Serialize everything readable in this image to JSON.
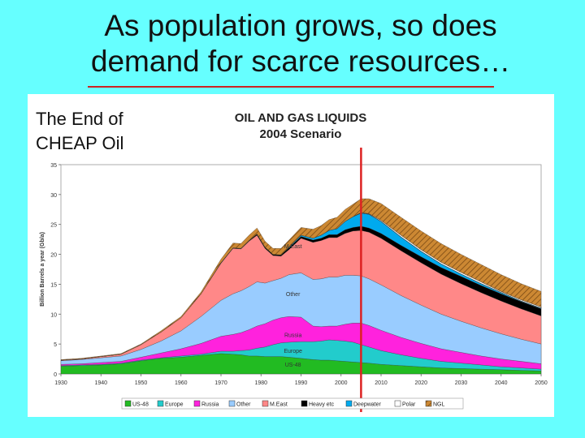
{
  "slide": {
    "title_line1": "As population grows, so does",
    "title_line2": "demand for scarce resources…",
    "panel_line1": "The End of",
    "panel_line2": "CHEAP Oil"
  },
  "colors": {
    "background": "#66ffff",
    "underline": "#cc2222",
    "marker": "#dd2222"
  },
  "chart_data": {
    "type": "area",
    "stacked": true,
    "title_line1": "OIL AND GAS LIQUIDS",
    "title_line2": "2004 Scenario",
    "ylabel": "Billion Barrels a year (Gb/a)",
    "xlabel": "",
    "xlim": [
      1930,
      2050
    ],
    "ylim": [
      0,
      35
    ],
    "xticks": [
      "1930",
      "1940",
      "1950",
      "1960",
      "1970",
      "1980",
      "1990",
      "2000",
      "2010",
      "2020",
      "2030",
      "2040",
      "2050"
    ],
    "yticks": [
      "0",
      "5",
      "10",
      "15",
      "20",
      "25",
      "30",
      "35"
    ],
    "marker_year": 2005,
    "x": [
      1930,
      1935,
      1940,
      1945,
      1950,
      1955,
      1960,
      1965,
      1970,
      1973,
      1975,
      1977,
      1979,
      1981,
      1983,
      1985,
      1987,
      1990,
      1993,
      1995,
      1997,
      1999,
      2001,
      2003,
      2005,
      2007,
      2010,
      2015,
      2020,
      2025,
      2030,
      2035,
      2040,
      2045,
      2050
    ],
    "series": [
      {
        "name": "US-48",
        "color": "#22bb22",
        "values": [
          1.3,
          1.4,
          1.5,
          1.7,
          2.2,
          2.6,
          2.8,
          3.1,
          3.4,
          3.3,
          3.2,
          3.0,
          3.0,
          2.9,
          2.9,
          2.9,
          2.8,
          2.6,
          2.4,
          2.3,
          2.3,
          2.2,
          2.1,
          2.0,
          1.9,
          1.8,
          1.6,
          1.4,
          1.2,
          1.0,
          0.9,
          0.8,
          0.7,
          0.6,
          0.5
        ]
      },
      {
        "name": "Europe",
        "color": "#22cccc",
        "values": [
          0.1,
          0.1,
          0.1,
          0.1,
          0.1,
          0.1,
          0.2,
          0.2,
          0.4,
          0.5,
          0.7,
          1.0,
          1.3,
          1.6,
          2.0,
          2.3,
          2.5,
          2.8,
          3.0,
          3.2,
          3.4,
          3.4,
          3.4,
          3.3,
          3.0,
          2.7,
          2.3,
          1.8,
          1.4,
          1.1,
          0.9,
          0.7,
          0.5,
          0.4,
          0.3
        ]
      },
      {
        "name": "Russia",
        "color": "#ff22dd",
        "values": [
          0.2,
          0.2,
          0.3,
          0.3,
          0.5,
          0.8,
          1.2,
          1.8,
          2.5,
          2.8,
          3.0,
          3.4,
          3.7,
          3.9,
          4.1,
          4.2,
          4.3,
          4.1,
          2.6,
          2.4,
          2.3,
          2.4,
          2.8,
          3.2,
          3.6,
          3.6,
          3.4,
          2.9,
          2.5,
          2.1,
          1.8,
          1.5,
          1.3,
          1.1,
          0.9
        ]
      },
      {
        "name": "Other",
        "color": "#99ccff",
        "values": [
          0.6,
          0.7,
          0.8,
          0.9,
          1.3,
          2.0,
          3.0,
          4.5,
          6.0,
          6.8,
          7.0,
          7.2,
          7.4,
          6.8,
          6.6,
          6.6,
          7.0,
          7.4,
          7.8,
          8.0,
          8.2,
          8.2,
          8.2,
          8.0,
          7.9,
          7.8,
          7.6,
          7.0,
          6.4,
          5.8,
          5.2,
          4.7,
          4.2,
          3.7,
          3.3
        ]
      },
      {
        "name": "M.East",
        "color": "#ff8888",
        "values": [
          0.1,
          0.1,
          0.2,
          0.3,
          0.8,
          1.5,
          2.2,
          3.8,
          6.2,
          7.6,
          7.0,
          7.6,
          7.8,
          5.8,
          4.2,
          3.7,
          4.2,
          5.8,
          6.2,
          6.4,
          6.6,
          6.6,
          7.0,
          7.4,
          7.6,
          7.8,
          7.8,
          7.5,
          7.1,
          6.7,
          6.3,
          5.9,
          5.5,
          5.1,
          4.7
        ]
      },
      {
        "name": "Heavy etc",
        "color": "#000000",
        "values": [
          0.0,
          0.0,
          0.0,
          0.0,
          0.0,
          0.0,
          0.0,
          0.0,
          0.1,
          0.1,
          0.1,
          0.1,
          0.2,
          0.2,
          0.2,
          0.2,
          0.3,
          0.3,
          0.4,
          0.4,
          0.5,
          0.5,
          0.6,
          0.6,
          0.7,
          0.7,
          0.8,
          0.9,
          1.0,
          1.1,
          1.2,
          1.2,
          1.2,
          1.2,
          1.2
        ]
      },
      {
        "name": "Deepwater",
        "color": "#00aaee",
        "values": [
          0.0,
          0.0,
          0.0,
          0.0,
          0.0,
          0.0,
          0.0,
          0.0,
          0.0,
          0.0,
          0.0,
          0.0,
          0.0,
          0.0,
          0.0,
          0.0,
          0.1,
          0.2,
          0.3,
          0.5,
          0.7,
          1.0,
          1.4,
          1.8,
          2.2,
          2.3,
          2.0,
          1.4,
          0.9,
          0.6,
          0.4,
          0.3,
          0.2,
          0.1,
          0.1
        ]
      },
      {
        "name": "Polar",
        "color": "#ffffff",
        "values": [
          0.0,
          0.0,
          0.0,
          0.0,
          0.0,
          0.0,
          0.0,
          0.0,
          0.0,
          0.0,
          0.0,
          0.0,
          0.0,
          0.0,
          0.0,
          0.0,
          0.0,
          0.0,
          0.0,
          0.0,
          0.0,
          0.0,
          0.0,
          0.0,
          0.1,
          0.1,
          0.2,
          0.3,
          0.3,
          0.3,
          0.3,
          0.3,
          0.2,
          0.2,
          0.2
        ]
      },
      {
        "name": "NGL",
        "color": "#cc8833",
        "values": [
          0.1,
          0.1,
          0.1,
          0.1,
          0.1,
          0.2,
          0.2,
          0.3,
          0.6,
          0.8,
          0.8,
          0.9,
          1.0,
          1.0,
          1.0,
          1.1,
          1.2,
          1.3,
          1.5,
          1.6,
          1.8,
          1.9,
          2.0,
          2.1,
          2.3,
          2.5,
          2.8,
          3.0,
          3.1,
          3.1,
          3.0,
          2.9,
          2.8,
          2.7,
          2.6
        ]
      }
    ],
    "area_labels": [
      {
        "text": "M.East",
        "x": 1988,
        "y": 21.0
      },
      {
        "text": "Other",
        "x": 1988,
        "y": 13.0
      },
      {
        "text": "Russia",
        "x": 1988,
        "y": 6.2
      },
      {
        "text": "Europe",
        "x": 1988,
        "y": 3.5
      },
      {
        "text": "US-48",
        "x": 1988,
        "y": 1.2
      }
    ],
    "legend": [
      "US-48",
      "Europe",
      "Russia",
      "Other",
      "M.East",
      "Heavy etc",
      "Deepwater",
      "Polar",
      "NGL"
    ]
  }
}
